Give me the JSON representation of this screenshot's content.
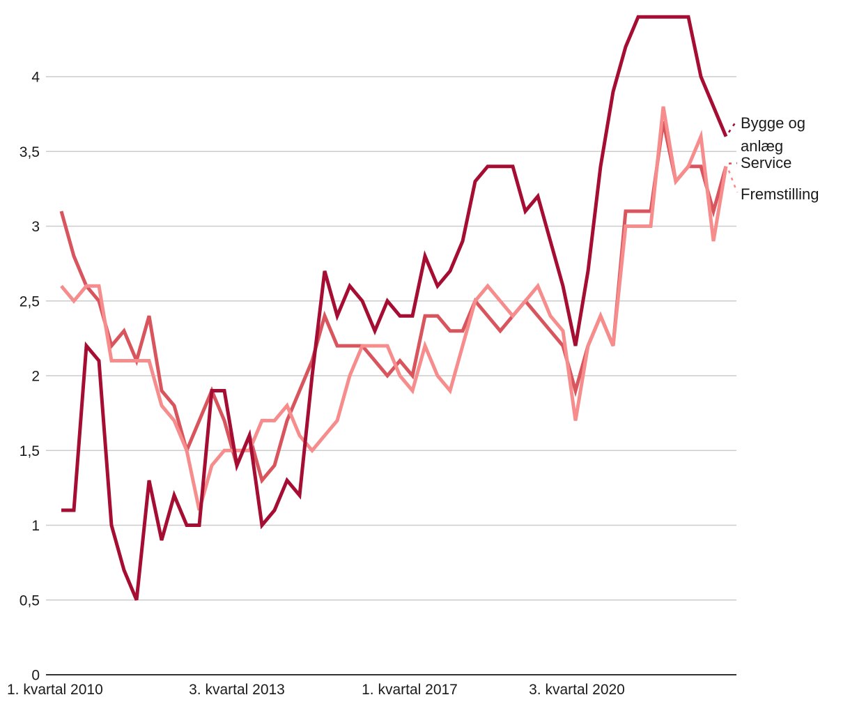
{
  "chart_data": {
    "type": "line",
    "title": "",
    "xlabel": "",
    "ylabel": "",
    "x_unit": "kvartal",
    "x_tick_labels": [
      "1. kvartal 2010",
      "3. kvartal 2013",
      "1. kvartal 2017",
      "3. kvartal 2020"
    ],
    "x_tick_indices": [
      0,
      14,
      28,
      42
    ],
    "y_tick_labels": [
      "0",
      "0,5",
      "1",
      "1,5",
      "2",
      "2,5",
      "3",
      "3,5",
      "4"
    ],
    "y_tick_values": [
      0,
      0.5,
      1,
      1.5,
      2,
      2.5,
      3,
      3.5,
      4
    ],
    "ylim": [
      0,
      4.45
    ],
    "n_points": 54,
    "grid": true,
    "legend_position": "right-edge-direct-labels",
    "series": [
      {
        "name": "Service",
        "label_lines": [
          "Service"
        ],
        "color": "#D9555E",
        "values": [
          3.1,
          2.8,
          2.6,
          2.5,
          2.2,
          2.3,
          2.1,
          2.4,
          1.9,
          1.8,
          1.5,
          1.7,
          1.9,
          1.7,
          1.4,
          1.6,
          1.3,
          1.4,
          1.7,
          1.9,
          2.1,
          2.4,
          2.2,
          2.2,
          2.2,
          2.1,
          2.0,
          2.1,
          2.0,
          2.4,
          2.4,
          2.3,
          2.3,
          2.5,
          2.4,
          2.3,
          2.4,
          2.5,
          2.4,
          2.3,
          2.2,
          1.9,
          2.2,
          2.4,
          2.2,
          3.1,
          3.1,
          3.1,
          3.7,
          3.3,
          3.4,
          3.4,
          3.1,
          3.4
        ]
      },
      {
        "name": "Fremstilling",
        "label_lines": [
          "Fremstilling"
        ],
        "color": "#F68C8C",
        "values": [
          2.6,
          2.5,
          2.6,
          2.6,
          2.1,
          2.1,
          2.1,
          2.1,
          1.8,
          1.7,
          1.5,
          1.1,
          1.4,
          1.5,
          1.5,
          1.5,
          1.7,
          1.7,
          1.8,
          1.6,
          1.5,
          1.6,
          1.7,
          2.0,
          2.2,
          2.2,
          2.2,
          2.0,
          1.9,
          2.2,
          2.0,
          1.9,
          2.2,
          2.5,
          2.6,
          2.5,
          2.4,
          2.5,
          2.6,
          2.4,
          2.3,
          1.7,
          2.2,
          2.4,
          2.2,
          3.0,
          3.0,
          3.0,
          3.8,
          3.3,
          3.4,
          3.6,
          2.9,
          3.4
        ]
      },
      {
        "name": "Bygge og anlæg",
        "label_lines": [
          "Bygge og",
          "anlæg"
        ],
        "color": "#A50D33",
        "values": [
          1.1,
          1.1,
          2.2,
          2.1,
          1.0,
          0.7,
          0.5,
          1.3,
          0.9,
          1.2,
          1.0,
          1.0,
          1.9,
          1.9,
          1.4,
          1.6,
          1.0,
          1.1,
          1.3,
          1.2,
          2.0,
          2.7,
          2.4,
          2.6,
          2.5,
          2.3,
          2.5,
          2.4,
          2.4,
          2.8,
          2.6,
          2.7,
          2.9,
          3.3,
          3.4,
          3.4,
          3.4,
          3.1,
          3.2,
          2.9,
          2.6,
          2.2,
          2.7,
          3.4,
          3.9,
          4.2,
          4.4,
          4.4,
          4.4,
          4.4,
          4.4,
          4.0,
          3.8,
          3.6
        ]
      }
    ]
  },
  "colors": {
    "background": "#ffffff",
    "gridline": "#cccccc",
    "axis_line": "#333333",
    "tick_text": "#1a1a1a",
    "legend_text": "#1a1a1a"
  }
}
